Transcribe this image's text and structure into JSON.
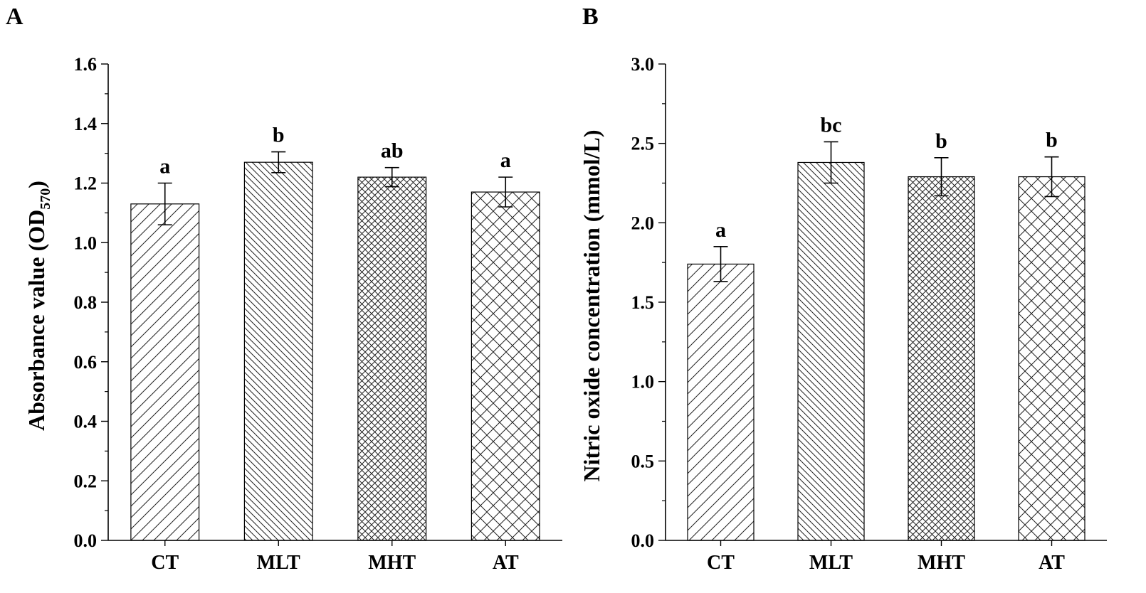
{
  "figure": {
    "panels": [
      "A",
      "B"
    ]
  },
  "chart_data": [
    {
      "type": "bar",
      "panel": "A",
      "categories": [
        "CT",
        "MLT",
        "MHT",
        "AT"
      ],
      "values": [
        1.13,
        1.27,
        1.22,
        1.17
      ],
      "errors": [
        0.07,
        0.035,
        0.032,
        0.05
      ],
      "significance": [
        "a",
        "b",
        "ab",
        "a"
      ],
      "patterns": [
        "diag-sparse-ne",
        "diag-dense-nw",
        "cross-dense",
        "cross-sparse"
      ],
      "ylabel_main": "Absorbance value (OD",
      "ylabel_sub": "570",
      "ylabel_end": ")",
      "ylim": [
        0,
        1.6
      ],
      "yticks": [
        0.0,
        0.2,
        0.4,
        0.6,
        0.8,
        1.0,
        1.2,
        1.4,
        1.6
      ],
      "ytick_labels": [
        "0.0",
        "0.2",
        "0.4",
        "0.6",
        "0.8",
        "1.0",
        "1.2",
        "1.4",
        "1.6"
      ],
      "grid": false
    },
    {
      "type": "bar",
      "panel": "B",
      "categories": [
        "CT",
        "MLT",
        "MHT",
        "AT"
      ],
      "values": [
        1.74,
        2.38,
        2.29,
        2.29
      ],
      "errors": [
        0.11,
        0.13,
        0.12,
        0.125
      ],
      "significance": [
        "a",
        "bc",
        "b",
        "b"
      ],
      "patterns": [
        "diag-sparse-ne",
        "diag-dense-nw",
        "cross-dense",
        "cross-sparse"
      ],
      "ylabel_main": "Nitric oxide concentration (mmol/L)",
      "ylabel_sub": "",
      "ylabel_end": "",
      "ylim": [
        0,
        3.0
      ],
      "yticks": [
        0.0,
        0.5,
        1.0,
        1.5,
        2.0,
        2.5,
        3.0
      ],
      "ytick_labels": [
        "0.0",
        "0.5",
        "1.0",
        "1.5",
        "2.0",
        "2.5",
        "3.0"
      ],
      "grid": false
    }
  ]
}
